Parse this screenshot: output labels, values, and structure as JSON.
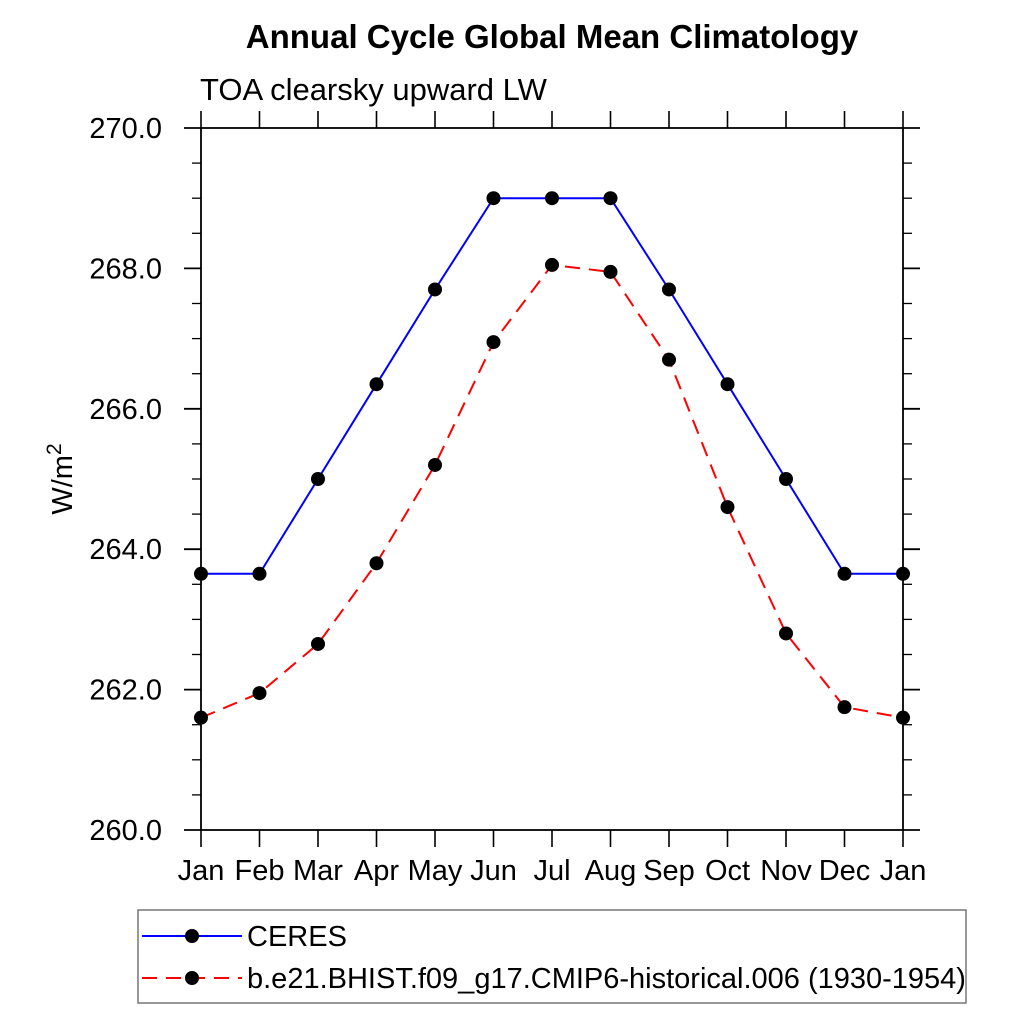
{
  "chart_data": {
    "type": "line",
    "title": "Annual Cycle Global Mean Climatology",
    "subtitle": "TOA clearsky upward LW",
    "ylabel_base": "W/m",
    "ylabel_exp": "2",
    "categories": [
      "Jan",
      "Feb",
      "Mar",
      "Apr",
      "May",
      "Jun",
      "Jul",
      "Aug",
      "Sep",
      "Oct",
      "Nov",
      "Dec",
      "Jan"
    ],
    "ylim": [
      260.0,
      270.0
    ],
    "ytick_major_interval": 2.0,
    "ytick_minor_interval": 0.5,
    "ytick_labels": [
      "260.0",
      "262.0",
      "264.0",
      "266.0",
      "268.0",
      "270.0"
    ],
    "grid": false,
    "legend_position": "below-left",
    "frame_color": "#000000",
    "series": [
      {
        "name": "CERES",
        "color": "#0000ff",
        "line_style": "solid",
        "marker": "filled-circle",
        "marker_color": "#000000",
        "values": [
          263.65,
          263.65,
          265.0,
          266.35,
          267.7,
          269.0,
          269.0,
          269.0,
          267.7,
          266.35,
          265.0,
          263.65,
          263.65
        ]
      },
      {
        "name": "b.e21.BHIST.f09_g17.CMIP6-historical.006 (1930-1954)",
        "color": "#ff0000",
        "line_style": "dashed",
        "marker": "filled-circle",
        "marker_color": "#000000",
        "values": [
          261.6,
          261.95,
          262.65,
          263.8,
          265.2,
          266.95,
          268.05,
          267.95,
          266.7,
          264.6,
          262.8,
          261.75,
          261.6
        ]
      }
    ]
  }
}
